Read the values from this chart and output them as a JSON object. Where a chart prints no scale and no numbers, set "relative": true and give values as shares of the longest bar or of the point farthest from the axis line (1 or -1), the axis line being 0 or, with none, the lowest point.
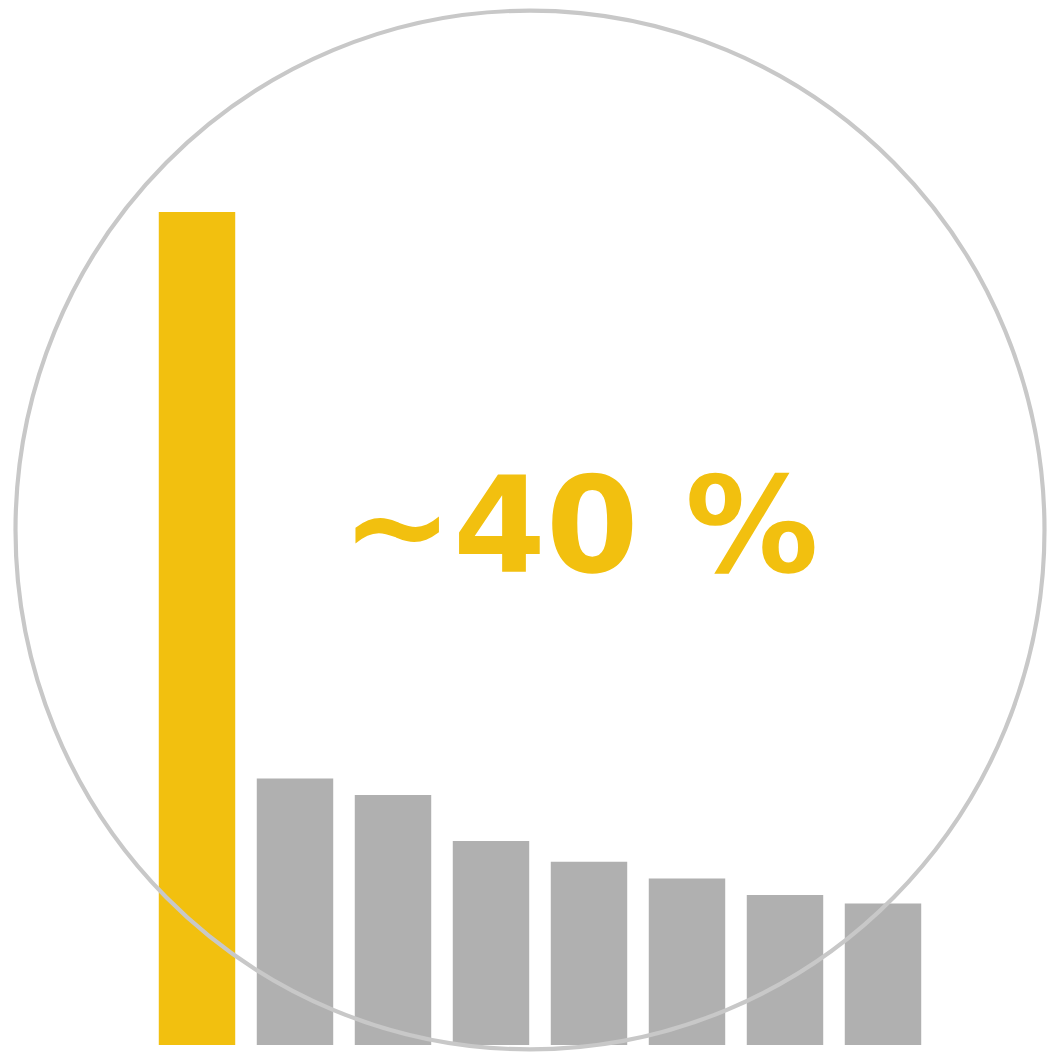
{
  "chart_data": {
    "type": "bar",
    "relative": true,
    "categories": [
      null,
      null,
      null,
      null,
      null,
      null,
      null,
      null
    ],
    "values": [
      1,
      0.32,
      0.3,
      0.245,
      0.22,
      0.2,
      0.18,
      0.17
    ],
    "colors": [
      "#f2c00f",
      "#b0b0b0",
      "#b0b0b0",
      "#b0b0b0",
      "#b0b0b0",
      "#b0b0b0",
      "#b0b0b0",
      "#b0b0b0"
    ],
    "annotations": [
      "~40 %"
    ]
  }
}
